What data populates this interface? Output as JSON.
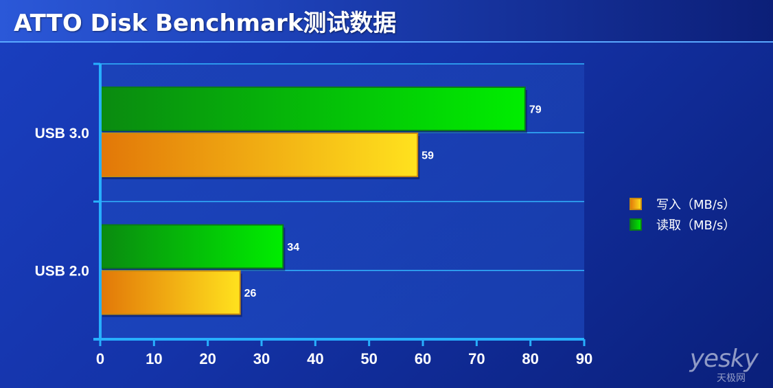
{
  "title": "ATTO Disk Benchmark测试数据",
  "watermark": {
    "brand": "yesky",
    "sub": "天极网"
  },
  "colors": {
    "write_start": "#e27708",
    "write_end": "#ffe21e",
    "read_start": "#0a8a10",
    "read_end": "#00ee00",
    "grid": "#33b6ff",
    "axis": "#27b0ff",
    "label": "#ffffff"
  },
  "chart_data": {
    "type": "bar",
    "orientation": "horizontal",
    "title": "ATTO Disk Benchmark测试数据",
    "categories": [
      "USB 3.0",
      "USB 2.0"
    ],
    "series": [
      {
        "name": "读取（MB/s）",
        "values": [
          79,
          34
        ]
      },
      {
        "name": "写入（MB/s）",
        "values": [
          59,
          26
        ]
      }
    ],
    "xlim": [
      0,
      90
    ],
    "xticks": [
      0,
      10,
      20,
      30,
      40,
      50,
      60,
      70,
      80,
      90
    ],
    "legend": [
      {
        "label": "写入（MB/s）",
        "series": "write"
      },
      {
        "label": "读取（MB/s）",
        "series": "read"
      }
    ],
    "legend_position": "right",
    "grid": true
  }
}
